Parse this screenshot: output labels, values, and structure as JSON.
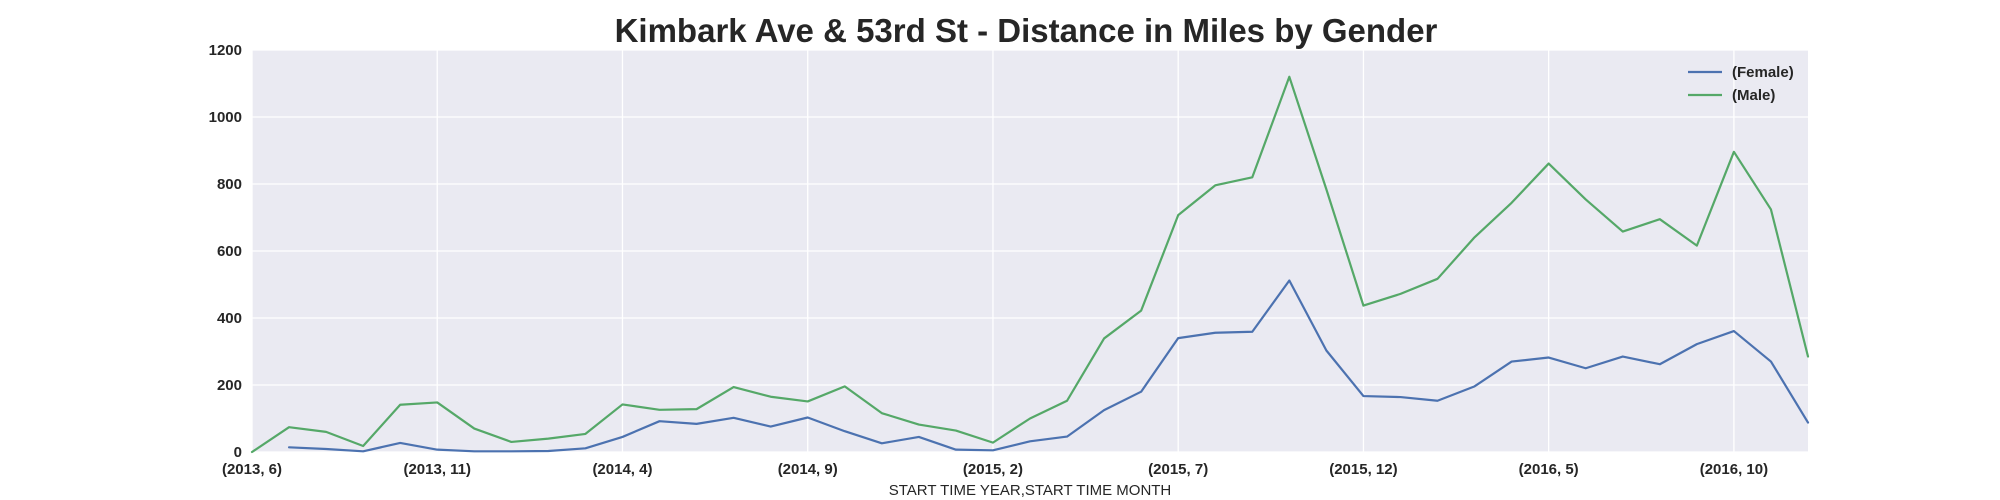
{
  "chart_data": {
    "type": "line",
    "title": "Kimbark Ave & 53rd St - Distance in Miles by Gender",
    "xlabel": "START TIME YEAR,START TIME MONTH",
    "ylabel": "",
    "ylim": [
      0,
      1200
    ],
    "yticks": [
      0,
      200,
      400,
      600,
      800,
      1000,
      1200
    ],
    "grid": true,
    "legend_position": "top-right",
    "x": [
      "(2013, 6)",
      "(2013, 7)",
      "(2013, 8)",
      "(2013, 9)",
      "(2013, 10)",
      "(2013, 11)",
      "(2013, 12)",
      "(2014, 1)",
      "(2014, 2)",
      "(2014, 3)",
      "(2014, 4)",
      "(2014, 5)",
      "(2014, 6)",
      "(2014, 7)",
      "(2014, 8)",
      "(2014, 9)",
      "(2014, 10)",
      "(2014, 11)",
      "(2014, 12)",
      "(2015, 1)",
      "(2015, 2)",
      "(2015, 3)",
      "(2015, 4)",
      "(2015, 5)",
      "(2015, 6)",
      "(2015, 7)",
      "(2015, 8)",
      "(2015, 9)",
      "(2015, 10)",
      "(2015, 11)",
      "(2015, 12)",
      "(2016, 1)",
      "(2016, 2)",
      "(2016, 3)",
      "(2016, 4)",
      "(2016, 5)",
      "(2016, 6)",
      "(2016, 7)",
      "(2016, 8)",
      "(2016, 9)",
      "(2016, 10)",
      "(2016, 11)",
      "(2016, 12)"
    ],
    "xtick_labels": [
      "(2013, 6)",
      "(2013, 11)",
      "(2014, 4)",
      "(2014, 9)",
      "(2015, 2)",
      "(2015, 7)",
      "(2015, 12)",
      "(2016, 5)",
      "(2016, 10)"
    ],
    "series": [
      {
        "name": "(Female)",
        "color": "#4c72b0",
        "values": [
          null,
          14,
          9,
          2,
          27,
          7,
          2,
          2,
          3,
          11,
          45,
          92,
          84,
          102,
          76,
          103,
          62,
          26,
          45,
          7,
          5,
          32,
          46,
          125,
          180,
          340,
          356,
          359,
          512,
          303,
          167,
          164,
          153,
          196,
          270,
          282,
          250,
          285,
          262,
          322,
          361,
          270,
          88
        ]
      },
      {
        "name": "(Male)",
        "color": "#55a868",
        "values": [
          0,
          74,
          60,
          18,
          141,
          148,
          70,
          30,
          40,
          54,
          142,
          126,
          128,
          194,
          165,
          151,
          196,
          116,
          82,
          64,
          28,
          100,
          153,
          339,
          422,
          707,
          796,
          820,
          1120,
          784,
          437,
          472,
          517,
          641,
          744,
          861,
          754,
          658,
          695,
          616,
          896,
          724,
          285
        ]
      }
    ]
  }
}
